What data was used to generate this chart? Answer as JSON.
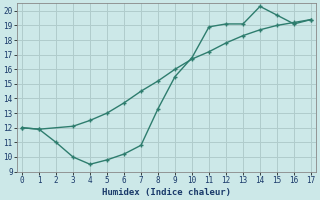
{
  "xlabel": "Humidex (Indice chaleur)",
  "bg_color": "#cce8e8",
  "grid_color": "#b0cccc",
  "line_color": "#2e7d6e",
  "line1_x": [
    0,
    1,
    2,
    3,
    4,
    5,
    6,
    7,
    8,
    9,
    10,
    11,
    12,
    13,
    14,
    15,
    16,
    17
  ],
  "line1_y": [
    12.0,
    11.9,
    11.0,
    10.0,
    9.5,
    9.8,
    10.2,
    10.8,
    13.3,
    15.5,
    16.8,
    18.9,
    19.1,
    19.1,
    20.3,
    19.7,
    19.1,
    19.4
  ],
  "line2_x": [
    0,
    1,
    3,
    4,
    5,
    6,
    7,
    8,
    9,
    10,
    11,
    12,
    13,
    14,
    15,
    16,
    17
  ],
  "line2_y": [
    12.0,
    11.9,
    12.1,
    12.5,
    13.0,
    13.7,
    14.5,
    15.2,
    16.0,
    16.7,
    17.2,
    17.8,
    18.3,
    18.7,
    19.0,
    19.2,
    19.4
  ],
  "xlim": [
    -0.3,
    17.3
  ],
  "ylim": [
    9,
    20.5
  ],
  "xticks": [
    0,
    1,
    2,
    3,
    4,
    5,
    6,
    7,
    8,
    9,
    10,
    11,
    12,
    13,
    14,
    15,
    16,
    17
  ],
  "yticks": [
    9,
    10,
    11,
    12,
    13,
    14,
    15,
    16,
    17,
    18,
    19,
    20
  ]
}
